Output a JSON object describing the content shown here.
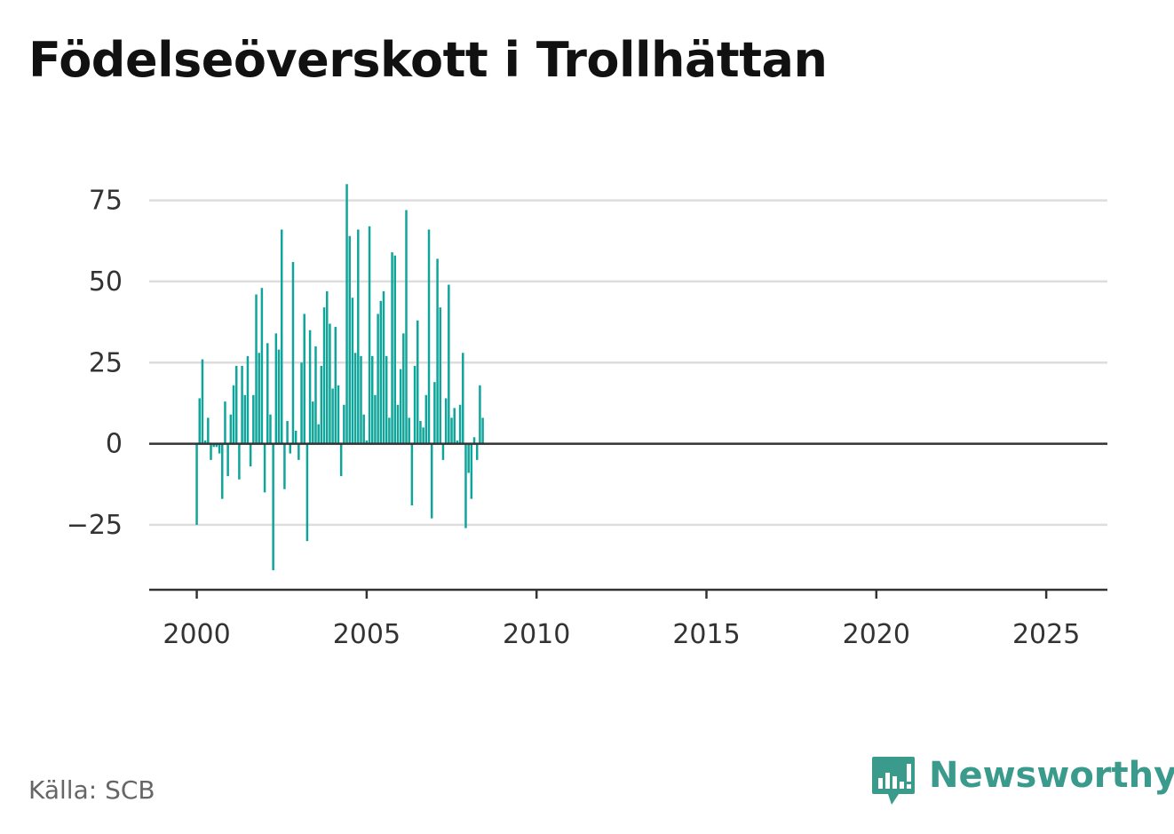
{
  "title": "Födelseöverskott i Trollhättan",
  "source": "Källa: SCB",
  "brand": "Newsworthy",
  "colors": {
    "bar": "#0fa59a",
    "grid": "#dddddd",
    "axis": "#333333",
    "brand": "#3a9a8c"
  },
  "icons": [
    "newsworthy-logo-icon"
  ],
  "chart_data": {
    "type": "bar",
    "x_unit": "year (monthly values)",
    "x_start": 2000.0,
    "x_step": 0.08333,
    "values": [
      -25,
      14,
      26,
      1,
      8,
      -5,
      -1,
      -1,
      -3,
      -17,
      13,
      -10,
      9,
      18,
      24,
      -11,
      24,
      15,
      27,
      -7,
      15,
      46,
      28,
      48,
      -15,
      31,
      9,
      -39,
      34,
      29,
      66,
      -14,
      7,
      -3,
      56,
      4,
      -5,
      25,
      40,
      -30,
      35,
      13,
      30,
      6,
      24,
      42,
      47,
      37,
      17,
      36,
      18,
      -10,
      12,
      80,
      64,
      45,
      28,
      66,
      27,
      9,
      1,
      67,
      27,
      15,
      40,
      44,
      47,
      27,
      8,
      59,
      58,
      12,
      23,
      34,
      72,
      8,
      -19,
      24,
      38,
      7,
      5,
      15,
      66,
      -23,
      19,
      57,
      42,
      -5,
      14,
      49,
      8,
      11,
      1,
      12,
      28,
      -26,
      -9,
      -17,
      2,
      -5,
      18,
      8
    ],
    "xlim": [
      1998.6,
      2026.8
    ],
    "ylim": [
      -45,
      82
    ],
    "x_ticks": [
      2000,
      2005,
      2010,
      2015,
      2020,
      2025
    ],
    "x_tick_labels": [
      "2000",
      "2005",
      "2010",
      "2015",
      "2020",
      "2025"
    ],
    "y_ticks": [
      -25,
      0,
      25,
      50,
      75
    ],
    "y_tick_labels": [
      "−25",
      "0",
      "25",
      "50",
      "75"
    ],
    "grid": true,
    "xlabel": "",
    "ylabel": ""
  }
}
